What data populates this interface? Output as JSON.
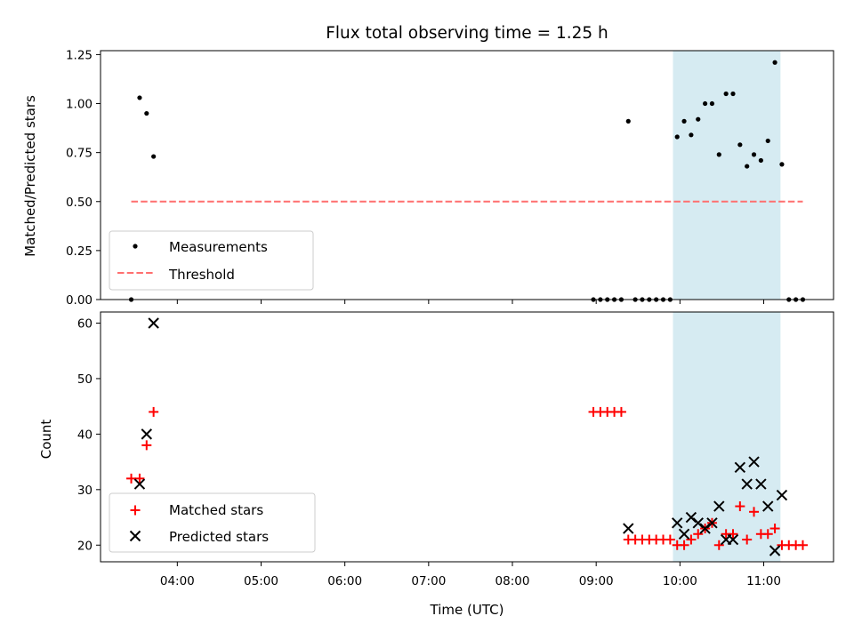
{
  "chart_data": [
    {
      "type": "scatter",
      "title": "Flux total observing time = 1.25 h",
      "xlabel": "",
      "ylabel": "Matched/Predicted stars",
      "xlim": [
        "03:05",
        "11:50"
      ],
      "ylim": [
        0,
        1.27
      ],
      "yticks": [
        0.0,
        0.25,
        0.5,
        0.75,
        1.0,
        1.25
      ],
      "ytick_labels": [
        "0.00",
        "0.25",
        "0.50",
        "0.75",
        "1.00",
        "1.25"
      ],
      "xtick_labels_shown": false,
      "highlight_span": {
        "x": [
          "09:55",
          "11:12"
        ],
        "color": "#add8e6"
      },
      "series": [
        {
          "name": "Measurements",
          "marker": "dot",
          "color": "#000000",
          "points": [
            [
              "03:27",
              0.0
            ],
            [
              "03:33",
              1.03
            ],
            [
              "03:38",
              0.95
            ],
            [
              "03:43",
              0.73
            ],
            [
              "08:58",
              0.0
            ],
            [
              "09:03",
              0.0
            ],
            [
              "09:08",
              0.0
            ],
            [
              "09:13",
              0.0
            ],
            [
              "09:18",
              0.0
            ],
            [
              "09:23",
              0.91
            ],
            [
              "09:28",
              0.0
            ],
            [
              "09:33",
              0.0
            ],
            [
              "09:38",
              0.0
            ],
            [
              "09:43",
              0.0
            ],
            [
              "09:48",
              0.0
            ],
            [
              "09:53",
              0.0
            ],
            [
              "09:58",
              0.83
            ],
            [
              "10:03",
              0.91
            ],
            [
              "10:08",
              0.84
            ],
            [
              "10:13",
              0.92
            ],
            [
              "10:18",
              1.0
            ],
            [
              "10:23",
              1.0
            ],
            [
              "10:28",
              0.74
            ],
            [
              "10:33",
              1.05
            ],
            [
              "10:38",
              1.05
            ],
            [
              "10:43",
              0.79
            ],
            [
              "10:48",
              0.68
            ],
            [
              "10:53",
              0.74
            ],
            [
              "10:58",
              0.71
            ],
            [
              "11:03",
              0.81
            ],
            [
              "11:08",
              1.21
            ],
            [
              "11:13",
              0.69
            ],
            [
              "11:18",
              0.0
            ],
            [
              "11:23",
              0.0
            ],
            [
              "11:28",
              0.0
            ]
          ]
        },
        {
          "name": "Threshold",
          "line": "dashed",
          "color": "#ff6f6f",
          "x": [
            "03:27",
            "11:28"
          ],
          "y": [
            0.5,
            0.5
          ]
        }
      ],
      "legend_position": "lower-left"
    },
    {
      "type": "scatter",
      "title": "",
      "xlabel": "Time (UTC)",
      "ylabel": "Count",
      "xlim": [
        "03:05",
        "11:50"
      ],
      "ylim": [
        17,
        62
      ],
      "yticks": [
        20,
        30,
        40,
        50,
        60
      ],
      "ytick_labels": [
        "20",
        "30",
        "40",
        "50",
        "60"
      ],
      "xticks": [
        "04:00",
        "05:00",
        "06:00",
        "07:00",
        "08:00",
        "09:00",
        "10:00",
        "11:00"
      ],
      "xtick_labels": [
        "04:00",
        "05:00",
        "06:00",
        "07:00",
        "08:00",
        "09:00",
        "10:00",
        "11:00"
      ],
      "highlight_span": {
        "x": [
          "09:55",
          "11:12"
        ],
        "color": "#add8e6"
      },
      "series": [
        {
          "name": "Matched stars",
          "marker": "plus",
          "color": "#ff0000",
          "points": [
            [
              "03:27",
              32
            ],
            [
              "03:33",
              32
            ],
            [
              "03:38",
              38
            ],
            [
              "03:43",
              44
            ],
            [
              "08:58",
              44
            ],
            [
              "09:03",
              44
            ],
            [
              "09:08",
              44
            ],
            [
              "09:13",
              44
            ],
            [
              "09:18",
              44
            ],
            [
              "09:23",
              21
            ],
            [
              "09:28",
              21
            ],
            [
              "09:33",
              21
            ],
            [
              "09:38",
              21
            ],
            [
              "09:43",
              21
            ],
            [
              "09:48",
              21
            ],
            [
              "09:53",
              21
            ],
            [
              "09:58",
              20
            ],
            [
              "10:03",
              20
            ],
            [
              "10:08",
              21
            ],
            [
              "10:13",
              22
            ],
            [
              "10:18",
              23
            ],
            [
              "10:23",
              24
            ],
            [
              "10:28",
              20
            ],
            [
              "10:33",
              22
            ],
            [
              "10:38",
              22
            ],
            [
              "10:43",
              27
            ],
            [
              "10:48",
              21
            ],
            [
              "10:53",
              26
            ],
            [
              "10:58",
              22
            ],
            [
              "11:03",
              22
            ],
            [
              "11:08",
              23
            ],
            [
              "11:13",
              20
            ],
            [
              "11:18",
              20
            ],
            [
              "11:23",
              20
            ],
            [
              "11:28",
              20
            ]
          ]
        },
        {
          "name": "Predicted stars",
          "marker": "x",
          "color": "#000000",
          "points": [
            [
              "03:33",
              31
            ],
            [
              "03:38",
              40
            ],
            [
              "03:43",
              60
            ],
            [
              "09:23",
              23
            ],
            [
              "09:58",
              24
            ],
            [
              "10:03",
              22
            ],
            [
              "10:08",
              25
            ],
            [
              "10:13",
              24
            ],
            [
              "10:18",
              23
            ],
            [
              "10:23",
              24
            ],
            [
              "10:28",
              27
            ],
            [
              "10:33",
              21
            ],
            [
              "10:38",
              21
            ],
            [
              "10:43",
              34
            ],
            [
              "10:48",
              31
            ],
            [
              "10:53",
              35
            ],
            [
              "10:58",
              31
            ],
            [
              "11:03",
              27
            ],
            [
              "11:08",
              19
            ],
            [
              "11:13",
              29
            ]
          ]
        }
      ],
      "legend_position": "lower-left"
    }
  ]
}
